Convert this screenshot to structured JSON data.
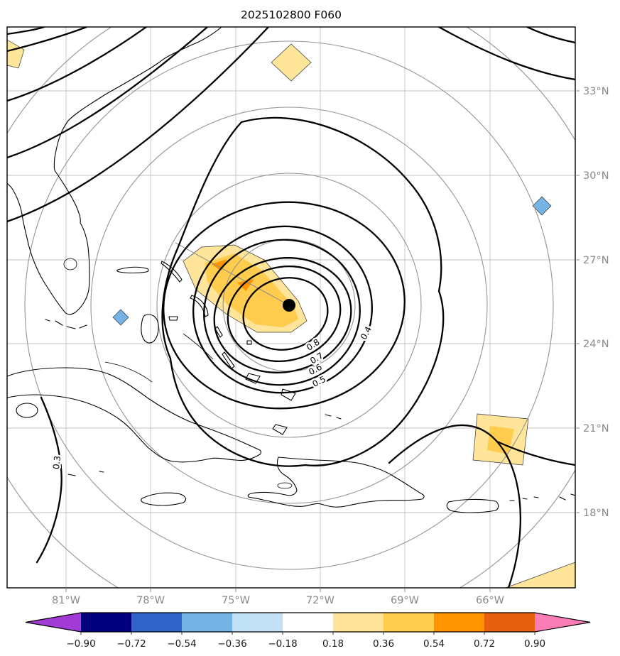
{
  "title": "2025102800 F060",
  "chart_data": {
    "type": "heatmap",
    "subtype": "geographic_contour_map_with_colorbar",
    "title": "2025102800 F060",
    "grid": true,
    "x_axis": {
      "ticks": [
        "81°W",
        "78°W",
        "75°W",
        "72°W",
        "69°W",
        "66°W"
      ],
      "approx_lon_range_west_deg": [
        83.1,
        62.9
      ]
    },
    "y_axis": {
      "ticks_top_to_bottom": [
        "33°N",
        "30°N",
        "27°N",
        "24°N",
        "21°N",
        "18°N"
      ],
      "approx_lat_range_north_deg": [
        15.3,
        35.3
      ]
    },
    "storm_center": {
      "marker": "filled black dot",
      "approx_lon_deg_west": 73.1,
      "approx_lat_deg_north": 25.4
    },
    "range_rings": {
      "count": 5,
      "style": "thin gray concentric circles centered on storm center, equally spaced"
    },
    "contours": {
      "labels": [
        "0.3",
        "0.4",
        "0.5",
        "0.6",
        "0.7",
        "0.8"
      ],
      "labeled_levels": [
        0.3,
        0.4,
        0.5,
        0.6,
        0.7,
        0.8
      ],
      "style": "bold black closed contours concentric around storm center; additional bold synoptic contours in NW, NE and SE corners"
    },
    "shaded_features": [
      {
        "shape": "irregular patch",
        "color_range": "0.18 to 0.72 (yellow/gold with small orange cores)",
        "location": "WNW of storm center, approx 76.5-73.5°W, 25-27.2°N"
      },
      {
        "shape": "diamond",
        "color_range": "0.18 to 0.54 (yellow)",
        "location": "approx 73.0°W, 34.3°N"
      },
      {
        "shape": "diamond",
        "color_range": "-0.54 to -0.18 (light blue)",
        "location": "approx 64.1°W, 29.0°N"
      },
      {
        "shape": "diamond",
        "color_range": "-0.54 to -0.18 (light blue)",
        "location": "approx 79.1°W, 24.9°N"
      },
      {
        "shape": "quadrilateral patch",
        "color_range": "0.18 to 0.54 (yellow)",
        "location": "approx 65.6°W, 20.6°N"
      },
      {
        "shape": "sliver at bottom edge",
        "color_range": "0.18 to 0.36 (pale yellow)",
        "location": "bottom right edge"
      },
      {
        "shape": "small patch",
        "color_range": "0.18 to 0.36 (pale yellow)",
        "location": "top left corner"
      }
    ],
    "colorbar": {
      "orientation": "horizontal",
      "extend": "both",
      "tick_labels": [
        "−0.90",
        "−0.72",
        "−0.54",
        "−0.36",
        "−0.18",
        "0.18",
        "0.36",
        "0.54",
        "0.72",
        "0.90"
      ],
      "boundaries": [
        -0.9,
        -0.72,
        -0.54,
        -0.36,
        -0.18,
        0.18,
        0.36,
        0.54,
        0.72,
        0.9
      ],
      "segment_colors": [
        "#00007e",
        "#3263c8",
        "#74b3e3",
        "#c3e1f5",
        "#ffffff",
        "#ffe59a",
        "#ffcc4d",
        "#ff9400",
        "#e65f0c"
      ],
      "under_arrow_color": "#a23bd6",
      "over_arrow_color": "#fb7db5"
    }
  }
}
